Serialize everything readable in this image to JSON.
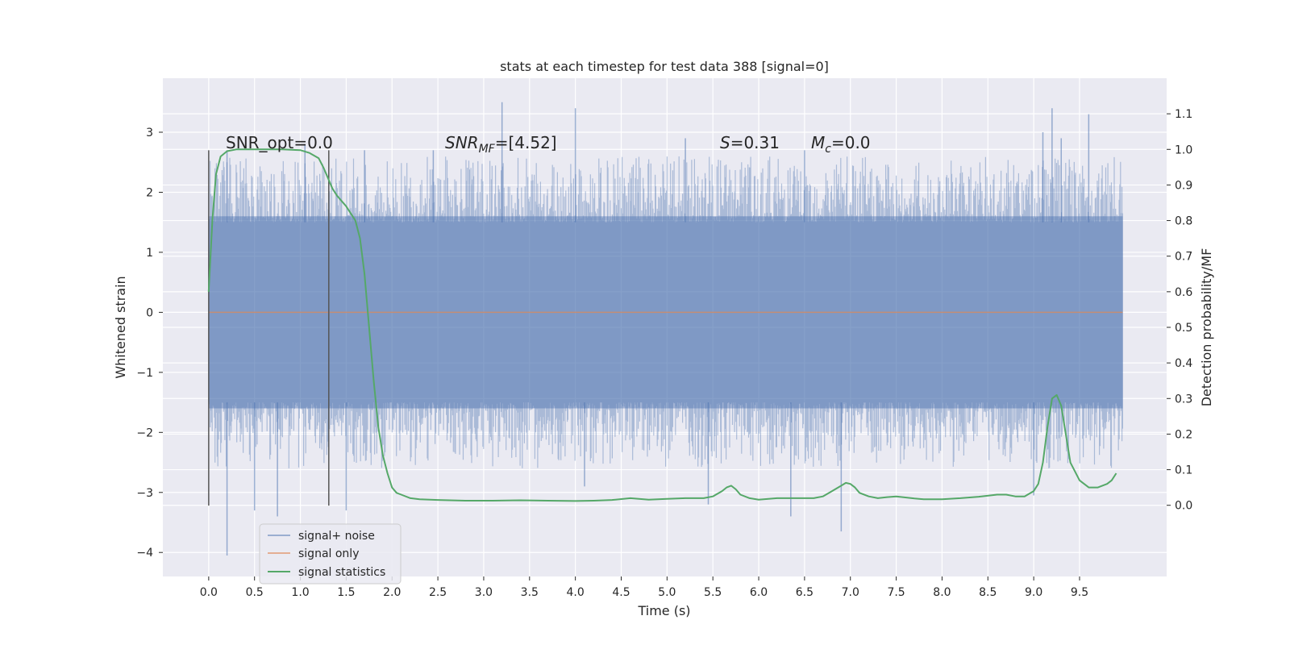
{
  "chart_data": {
    "type": "line",
    "title": "stats at each timestep for test data 388 [signal=0]",
    "xlabel": "Time (s)",
    "ylabel": "Whitened strain",
    "y2label": "Detection probability/MF",
    "xlim": [
      -0.5,
      10.45
    ],
    "ylim": [
      -4.4,
      3.9
    ],
    "y2lim": [
      -0.2,
      1.2
    ],
    "x_ticks": [
      "0.0",
      "0.5",
      "1.0",
      "1.5",
      "2.0",
      "2.5",
      "3.0",
      "3.5",
      "4.0",
      "4.5",
      "5.0",
      "5.5",
      "6.0",
      "6.5",
      "7.0",
      "7.5",
      "8.0",
      "8.5",
      "9.0",
      "9.5"
    ],
    "y_ticks": [
      "3",
      "2",
      "1",
      "0",
      "−1",
      "−2",
      "−3",
      "−4"
    ],
    "y2_ticks": [
      "1.1",
      "1.0",
      "0.9",
      "0.8",
      "0.7",
      "0.6",
      "0.5",
      "0.4",
      "0.3",
      "0.2",
      "0.1",
      "0.0"
    ],
    "grid": true,
    "legend_position": "lower-left",
    "colors": {
      "background": "#eaeaf2",
      "grid": "#ffffff",
      "noise": "#4c72b0",
      "signal": "#dd8452",
      "statistics": "#55a868",
      "marker": "#555555"
    },
    "annotations": {
      "snr_opt": "SNR_opt=0.0",
      "snr_mf_main": "SNR",
      "snr_mf_sub": "MF",
      "snr_mf_value": "=[4.52]",
      "s_label": "S",
      "s_value": "=0.31",
      "mc_label": "M",
      "mc_sub": "c",
      "mc_value": "=0.0"
    },
    "markers_x": [
      0.0,
      1.31
    ],
    "series": [
      {
        "name": "signal+ noise",
        "type": "noise_band",
        "x_range": [
          0.0,
          9.97
        ],
        "core_range": [
          -1.6,
          1.6
        ],
        "spikes_up": [
          [
            0.2,
            2.7
          ],
          [
            1.05,
            2.8
          ],
          [
            1.7,
            2.7
          ],
          [
            2.45,
            2.7
          ],
          [
            3.2,
            3.5
          ],
          [
            4.0,
            3.4
          ],
          [
            5.2,
            2.9
          ],
          [
            6.5,
            2.7
          ],
          [
            9.1,
            3.0
          ],
          [
            9.2,
            3.4
          ],
          [
            9.6,
            3.3
          ],
          [
            9.3,
            2.9
          ]
        ],
        "spikes_down": [
          [
            0.2,
            -4.05
          ],
          [
            0.5,
            -3.3
          ],
          [
            0.75,
            -3.4
          ],
          [
            1.5,
            -3.3
          ],
          [
            4.1,
            -2.9
          ],
          [
            5.45,
            -3.2
          ],
          [
            6.35,
            -3.4
          ],
          [
            6.9,
            -3.65
          ],
          [
            9.0,
            -3.05
          ]
        ]
      },
      {
        "name": "signal only",
        "type": "line",
        "x": [
          0.0,
          9.97
        ],
        "y": [
          0.0,
          0.0
        ]
      },
      {
        "name": "signal statistics",
        "type": "line",
        "axis": "right",
        "x": [
          0.0,
          0.04,
          0.08,
          0.13,
          0.2,
          0.3,
          0.45,
          0.6,
          0.8,
          1.0,
          1.1,
          1.2,
          1.25,
          1.3,
          1.35,
          1.4,
          1.5,
          1.6,
          1.65,
          1.7,
          1.75,
          1.8,
          1.85,
          1.9,
          1.95,
          2.0,
          2.05,
          2.1,
          2.2,
          2.3,
          2.5,
          2.8,
          3.1,
          3.4,
          3.7,
          4.0,
          4.2,
          4.4,
          4.6,
          4.8,
          5.0,
          5.2,
          5.4,
          5.5,
          5.6,
          5.65,
          5.7,
          5.75,
          5.8,
          5.9,
          6.0,
          6.2,
          6.4,
          6.6,
          6.7,
          6.8,
          6.9,
          6.95,
          7.0,
          7.05,
          7.1,
          7.2,
          7.3,
          7.4,
          7.5,
          7.6,
          7.7,
          7.8,
          8.0,
          8.2,
          8.4,
          8.6,
          8.7,
          8.8,
          8.9,
          9.0,
          9.05,
          9.1,
          9.15,
          9.2,
          9.25,
          9.3,
          9.35,
          9.4,
          9.5,
          9.6,
          9.7,
          9.8,
          9.85,
          9.9
        ],
        "y": [
          0.6,
          0.8,
          0.93,
          0.98,
          0.995,
          1.0,
          1.0,
          1.0,
          1.0,
          0.998,
          0.99,
          0.975,
          0.95,
          0.92,
          0.89,
          0.87,
          0.84,
          0.8,
          0.75,
          0.65,
          0.5,
          0.35,
          0.22,
          0.14,
          0.09,
          0.05,
          0.035,
          0.03,
          0.02,
          0.017,
          0.015,
          0.013,
          0.013,
          0.014,
          0.013,
          0.012,
          0.013,
          0.015,
          0.02,
          0.016,
          0.018,
          0.02,
          0.02,
          0.025,
          0.04,
          0.05,
          0.055,
          0.045,
          0.03,
          0.02,
          0.016,
          0.02,
          0.02,
          0.02,
          0.025,
          0.04,
          0.055,
          0.063,
          0.06,
          0.05,
          0.035,
          0.025,
          0.02,
          0.023,
          0.025,
          0.022,
          0.019,
          0.017,
          0.017,
          0.02,
          0.024,
          0.03,
          0.03,
          0.025,
          0.025,
          0.04,
          0.06,
          0.12,
          0.22,
          0.3,
          0.31,
          0.28,
          0.2,
          0.12,
          0.07,
          0.05,
          0.05,
          0.06,
          0.07,
          0.09
        ]
      }
    ]
  }
}
